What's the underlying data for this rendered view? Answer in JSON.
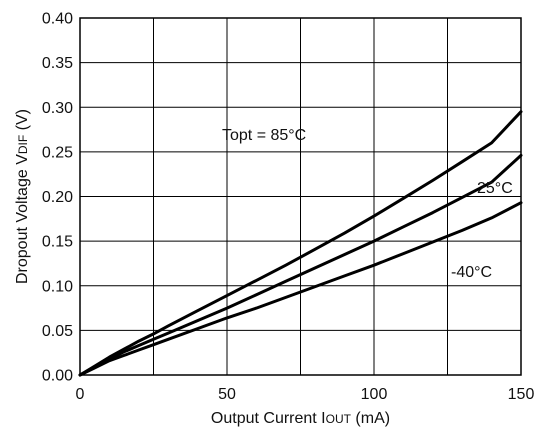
{
  "chart_data": {
    "type": "line",
    "xlabel": "Output Current I",
    "xlabel_sub": "OUT",
    "xlabel_unit": " (mA)",
    "ylabel": "Dropout Voltage V",
    "ylabel_sub": "DIF",
    "ylabel_unit": " (V)",
    "xlim": [
      0,
      150
    ],
    "ylim": [
      0,
      0.4
    ],
    "x_ticks": [
      0,
      50,
      100,
      150
    ],
    "y_ticks": [
      0.0,
      0.05,
      0.1,
      0.15,
      0.2,
      0.25,
      0.3,
      0.35,
      0.4
    ],
    "x_ticklabels": [
      "0",
      "50",
      "100",
      "150"
    ],
    "y_ticklabels": [
      "0.00",
      "0.05",
      "0.10",
      "0.15",
      "0.20",
      "0.25",
      "0.30",
      "0.35",
      "0.40"
    ],
    "x_grid_step": 25,
    "y_grid_step": 0.05,
    "grid": true,
    "series": [
      {
        "name": "Topt = 85°C",
        "x": [
          0,
          5,
          10,
          15,
          20,
          25,
          30,
          40,
          50,
          60,
          70,
          80,
          90,
          100,
          110,
          120,
          130,
          140,
          150
        ],
        "y": [
          0.0,
          0.01,
          0.02,
          0.029,
          0.038,
          0.046,
          0.055,
          0.072,
          0.089,
          0.106,
          0.123,
          0.141,
          0.159,
          0.178,
          0.198,
          0.218,
          0.239,
          0.26,
          0.295
        ]
      },
      {
        "name": "25°C",
        "x": [
          0,
          5,
          10,
          15,
          20,
          25,
          30,
          40,
          50,
          60,
          70,
          80,
          90,
          100,
          110,
          120,
          130,
          140,
          150
        ],
        "y": [
          0.0,
          0.009,
          0.018,
          0.026,
          0.033,
          0.04,
          0.047,
          0.061,
          0.075,
          0.09,
          0.105,
          0.12,
          0.135,
          0.15,
          0.166,
          0.182,
          0.199,
          0.216,
          0.246
        ]
      },
      {
        "name": "-40°C",
        "x": [
          0,
          5,
          10,
          15,
          20,
          25,
          30,
          40,
          50,
          60,
          70,
          80,
          90,
          100,
          110,
          120,
          130,
          140,
          150
        ],
        "y": [
          0.0,
          0.008,
          0.016,
          0.022,
          0.028,
          0.034,
          0.04,
          0.052,
          0.064,
          0.075,
          0.087,
          0.099,
          0.111,
          0.123,
          0.136,
          0.149,
          0.162,
          0.176,
          0.193
        ]
      }
    ]
  }
}
